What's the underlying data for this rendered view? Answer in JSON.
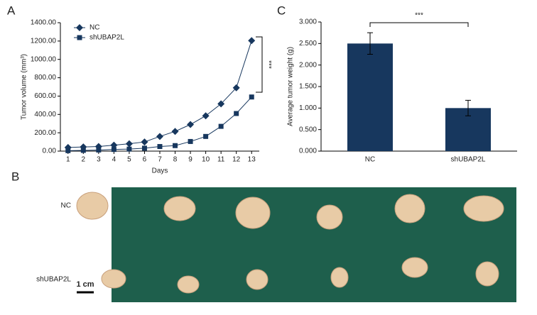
{
  "chart_data": [
    {
      "type": "line",
      "panel": "A",
      "xlabel": "Days",
      "ylabel": "Tumor volume (mm³)",
      "x": [
        1,
        2,
        3,
        4,
        5,
        6,
        7,
        8,
        9,
        10,
        11,
        12,
        13
      ],
      "xlim": [
        0.5,
        13.5
      ],
      "xticks": [
        1,
        2,
        3,
        4,
        5,
        6,
        7,
        8,
        9,
        10,
        11,
        12,
        13
      ],
      "ylim": [
        0,
        1400
      ],
      "yticks": [
        {
          "value": 0,
          "label": "0.00"
        },
        {
          "value": 200,
          "label": "200.00"
        },
        {
          "value": 400,
          "label": "400.00"
        },
        {
          "value": 600,
          "label": "600.00"
        },
        {
          "value": 800,
          "label": "800.00"
        },
        {
          "value": 1000,
          "label": "1000.00"
        },
        {
          "value": 1200,
          "label": "1200.00"
        },
        {
          "value": 1400,
          "label": "1400.00"
        }
      ],
      "series": [
        {
          "name": "NC",
          "color": "#17375e",
          "marker": "diamond",
          "values": [
            40,
            45,
            50,
            65,
            80,
            100,
            160,
            215,
            290,
            385,
            515,
            690,
            1205
          ]
        },
        {
          "name": "shUBAP2L",
          "color": "#17375e",
          "marker": "square",
          "values": [
            5,
            8,
            12,
            18,
            22,
            32,
            50,
            60,
            105,
            160,
            270,
            410,
            590
          ]
        }
      ],
      "annotation": "***"
    },
    {
      "type": "bar",
      "panel": "C",
      "ylabel": "Average tumor weight (g)",
      "categories": [
        "NC",
        "shUBAP2L"
      ],
      "values": [
        2.5,
        1.0
      ],
      "errors": [
        0.25,
        0.18
      ],
      "color": "#17375e",
      "ylim": [
        0,
        3
      ],
      "yticks": [
        {
          "value": 0,
          "label": "0.000"
        },
        {
          "value": 0.5,
          "label": "0.500"
        },
        {
          "value": 1,
          "label": "1.000"
        },
        {
          "value": 1.5,
          "label": "1.500"
        },
        {
          "value": 2,
          "label": "2.000"
        },
        {
          "value": 2.5,
          "label": "2.500"
        },
        {
          "value": 3,
          "label": "3.000"
        }
      ],
      "annotation": "***"
    }
  ],
  "photo": {
    "panel": "B",
    "rows": [
      "NC",
      "shUBAP2L"
    ],
    "scale": "1 cm"
  }
}
